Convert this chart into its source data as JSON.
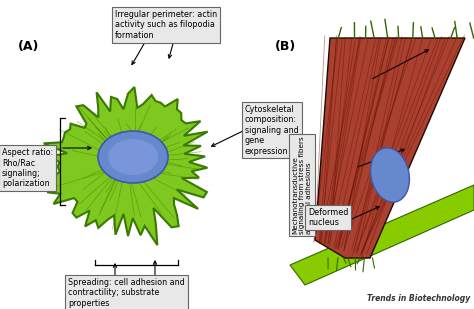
{
  "background_color": "#ffffff",
  "label_A": "(A)",
  "label_B": "(B)",
  "journal_text": "Trends in Biotechnology",
  "box_top_center": "Irregular perimeter: actin\nactivity such as filopodia\nformation",
  "box_right_center": "Cytoskeletal\ncomposition:\nsignaling and\ngene\nexpression",
  "box_left": "Aspect ratio:\nRho/Rac\nsignaling;\npolarization",
  "box_bottom": "Spreading: cell adhesion and\ncontractility; substrate\nproperties",
  "box_B_rotated": "Mechanotransductive\nsignaling from stress fibers\nand focal adhesions",
  "box_B_bottom": "Deformed\nnucleus",
  "cell_green": "#7EC820",
  "cell_dark_green": "#3A7A00",
  "nucleus_blue": "#6688CC",
  "nucleus_dark": "#4455AA",
  "cell_B_red_dark": "#7A2010",
  "cell_B_red_mid": "#AA4030",
  "cell_B_green": "#88CC00",
  "cell_B_nucleus_blue": "#6688CC"
}
